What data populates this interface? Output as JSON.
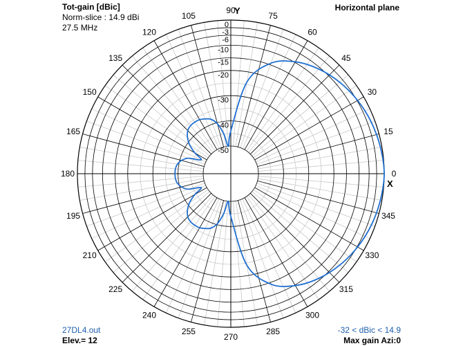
{
  "header": {
    "title": "Tot-gain [dBic]",
    "norm_slice": "Norm-slice : 14.9 dBi",
    "frequency": "27.5 MHz",
    "plane": "Horizontal plane"
  },
  "footer": {
    "filename": "27DL4.out",
    "elevation": "Elev.= 12",
    "range": "-32 < dBic < 14.9",
    "max_gain": "Max gain Azi:0"
  },
  "axis_labels": {
    "y": "Y",
    "x": "X"
  },
  "colors": {
    "trace": "#1f6fd0",
    "grid_major": "#000000",
    "grid_minor": "#c8c8c8",
    "text_blue": "#1f5fae"
  },
  "chart_data": {
    "type": "polar",
    "title": "Tot-gain [dBic]",
    "angle_unit": "deg",
    "angle_ticks": [
      0,
      15,
      30,
      45,
      60,
      75,
      90,
      105,
      120,
      135,
      150,
      165,
      180,
      195,
      210,
      225,
      240,
      255,
      270,
      285,
      300,
      315,
      330,
      345
    ],
    "radial_ticks": [
      0,
      -3,
      -6,
      -10,
      -15,
      -20,
      -30,
      -40,
      -50
    ],
    "radial_range": [
      -50,
      0
    ],
    "grid": true,
    "series": [
      {
        "angles": [
          0,
          10,
          20,
          30,
          40,
          50,
          60,
          70,
          80,
          90,
          95,
          100,
          105,
          110,
          115,
          120,
          125,
          130,
          135,
          140,
          145,
          150,
          155,
          160,
          165,
          170,
          175,
          180,
          185,
          190,
          195,
          200,
          205,
          210,
          215,
          220,
          225,
          230,
          235,
          240,
          245,
          250,
          255,
          260,
          265,
          270,
          280,
          290,
          300,
          310,
          320,
          330,
          340,
          350
        ],
        "values": [
          0,
          -0.6,
          -1.5,
          -2.8,
          -4.5,
          -6.7,
          -9.7,
          -14.3,
          -24,
          -44,
          -50,
          -45,
          -40.5,
          -38,
          -37,
          -36.2,
          -36,
          -36.1,
          -36.8,
          -38.5,
          -41,
          -44.5,
          -48,
          -43,
          -40.7,
          -39.4,
          -38.9,
          -38.8,
          -38.9,
          -39.4,
          -40.7,
          -43,
          -48,
          -44.5,
          -41,
          -38.5,
          -36.8,
          -36.1,
          -36,
          -36.2,
          -37,
          -38,
          -40.5,
          -45,
          -50,
          -44,
          -24,
          -14.3,
          -9.7,
          -6.7,
          -4.5,
          -2.8,
          -1.5,
          -0.6
        ]
      }
    ]
  }
}
